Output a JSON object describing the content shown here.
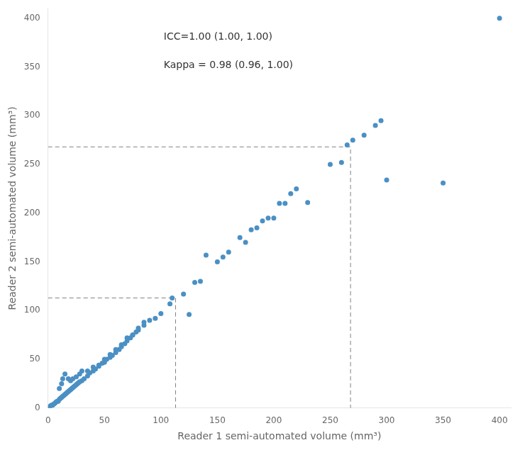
{
  "chart_data": {
    "type": "scatter",
    "x": [
      1,
      2,
      3,
      4,
      5,
      6,
      7,
      8,
      9,
      10,
      11,
      12,
      13,
      14,
      15,
      16,
      17,
      18,
      19,
      20,
      21,
      22,
      23,
      24,
      25,
      26,
      27,
      28,
      30,
      32,
      35,
      37,
      40,
      42,
      45,
      48,
      50,
      52,
      55,
      57,
      60,
      63,
      65,
      68,
      70,
      73,
      75,
      78,
      80,
      85,
      10,
      12,
      13,
      15,
      18,
      20,
      22,
      25,
      28,
      30,
      35,
      40,
      45,
      50,
      55,
      60,
      65,
      70,
      75,
      80,
      85,
      90,
      95,
      100,
      108,
      110,
      120,
      125,
      130,
      135,
      140,
      150,
      155,
      160,
      170,
      175,
      180,
      185,
      190,
      195,
      200,
      205,
      210,
      215,
      220,
      230,
      250,
      260,
      265,
      270,
      280,
      290,
      295,
      300,
      350,
      400
    ],
    "values": [
      1,
      2,
      3,
      3,
      4,
      5,
      6,
      7,
      7,
      9,
      10,
      11,
      12,
      13,
      14,
      15,
      16,
      17,
      18,
      19,
      20,
      21,
      22,
      23,
      24,
      25,
      26,
      27,
      28,
      30,
      33,
      36,
      38,
      40,
      43,
      46,
      47,
      50,
      52,
      54,
      57,
      60,
      63,
      66,
      69,
      72,
      75,
      78,
      82,
      85,
      20,
      25,
      30,
      35,
      30,
      28,
      30,
      32,
      35,
      38,
      38,
      42,
      44,
      50,
      55,
      60,
      65,
      72,
      75,
      80,
      88,
      90,
      92,
      97,
      107,
      113,
      117,
      96,
      129,
      130,
      157,
      150,
      155,
      160,
      175,
      170,
      183,
      185,
      192,
      195,
      195,
      210,
      210,
      220,
      225,
      211,
      250,
      252,
      270,
      275,
      280,
      290,
      295,
      234,
      231,
      400
    ],
    "color": "#4a90c4",
    "thresholds": {
      "values": [
        113,
        268
      ],
      "color": "#808080",
      "line_style": "dashed"
    },
    "annotations": [
      "ICC=1.00 (1.00, 1.00)",
      "Kappa = 0.98 (0.96, 1.00)"
    ],
    "xlabel": "Reader 1 semi-automated volume (mm³)",
    "ylabel": "Reader 2 semi-automated volume (mm³)",
    "xlim": [
      0,
      410
    ],
    "ylim": [
      0,
      410
    ],
    "xticks": [
      0,
      50,
      100,
      150,
      200,
      250,
      300,
      350,
      400
    ],
    "yticks": [
      0,
      50,
      100,
      150,
      200,
      250,
      300,
      350,
      400
    ],
    "grid": false
  }
}
